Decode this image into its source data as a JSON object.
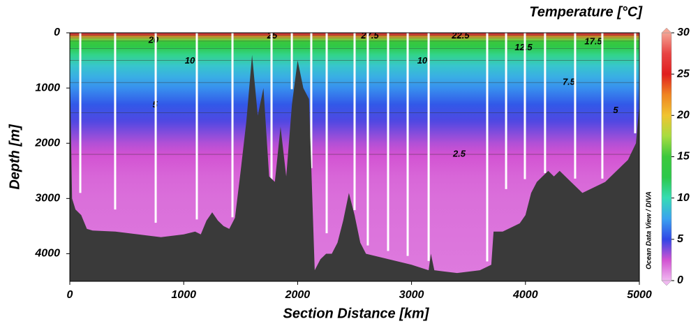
{
  "chart_data": {
    "type": "section",
    "title": "Temperature [°C]",
    "xlabel": "Section Distance [km]",
    "ylabel": "Depth [m]",
    "credit": "Ocean Data View / DIVA",
    "xlim": [
      0,
      5000
    ],
    "xticks": [
      0,
      1000,
      2000,
      3000,
      4000,
      5000
    ],
    "ylim": [
      0,
      4500
    ],
    "yticks": [
      0,
      1000,
      2000,
      3000,
      4000
    ],
    "y_inverted": true,
    "colorbar": {
      "lim": [
        0,
        30
      ],
      "ticks": [
        0,
        5,
        10,
        15,
        20,
        25,
        30
      ]
    },
    "colormap": [
      {
        "value": 0,
        "color": "#f0b8f0"
      },
      {
        "value": 2.5,
        "color": "#d252d2"
      },
      {
        "value": 5,
        "color": "#3046e6"
      },
      {
        "value": 7.5,
        "color": "#3aa2f0"
      },
      {
        "value": 10,
        "color": "#36dcb4"
      },
      {
        "value": 12.5,
        "color": "#2cc84a"
      },
      {
        "value": 15,
        "color": "#3cc83c"
      },
      {
        "value": 17.5,
        "color": "#a8dc40"
      },
      {
        "value": 20,
        "color": "#f0c430"
      },
      {
        "value": 22.5,
        "color": "#f08420"
      },
      {
        "value": 25,
        "color": "#e01e1e"
      },
      {
        "value": 27.5,
        "color": "#e84444"
      },
      {
        "value": 30,
        "color": "#f4a494"
      }
    ],
    "profile": {
      "depth": [
        0,
        30,
        60,
        100,
        150,
        250,
        400,
        600,
        800,
        1000,
        1300,
        1600,
        2000,
        2200,
        2600,
        3000,
        4500
      ],
      "temperature": [
        28,
        26,
        22,
        18,
        15,
        13,
        11,
        9,
        8,
        7,
        5.5,
        4.5,
        3,
        2.5,
        2,
        1.8,
        1.5
      ]
    },
    "contour_levels": [
      2.5,
      5,
      7.5,
      10,
      12.5,
      15,
      17.5,
      20,
      22.5,
      25,
      27.5
    ],
    "contour_labels": [
      {
        "x": 735,
        "y": 140,
        "value": 20
      },
      {
        "x": 1777,
        "y": 60,
        "value": 25
      },
      {
        "x": 2635,
        "y": 60,
        "value": 27.5
      },
      {
        "x": 3431,
        "y": 60,
        "value": 22.5
      },
      {
        "x": 3983,
        "y": 270,
        "value": 12.5
      },
      {
        "x": 4596,
        "y": 165,
        "value": 17.5
      },
      {
        "x": 1054,
        "y": 510,
        "value": 10
      },
      {
        "x": 3094,
        "y": 510,
        "value": 10
      },
      {
        "x": 4381,
        "y": 900,
        "value": 7.5
      },
      {
        "x": 4792,
        "y": 1410,
        "value": 5
      },
      {
        "x": 748,
        "y": 1310,
        "value": 5
      },
      {
        "x": 3419,
        "y": 2200,
        "value": 2.5
      }
    ],
    "bathymetry": {
      "x": [
        0,
        20,
        50,
        100,
        150,
        200,
        400,
        600,
        800,
        1000,
        1100,
        1150,
        1200,
        1250,
        1300,
        1350,
        1400,
        1450,
        1500,
        1550,
        1600,
        1650,
        1700,
        1750,
        1800,
        1850,
        1900,
        1950,
        2000,
        2050,
        2100,
        2150,
        2200,
        2250,
        2300,
        2350,
        2400,
        2450,
        2500,
        2550,
        2600,
        2800,
        3000,
        3150,
        3170,
        3200,
        3400,
        3600,
        3700,
        3720,
        3800,
        3900,
        3950,
        4000,
        4050,
        4100,
        4200,
        4250,
        4300,
        4400,
        4500,
        4600,
        4700,
        4800,
        4900,
        4970,
        5000
      ],
      "depth": [
        550,
        3000,
        3200,
        3300,
        3550,
        3580,
        3600,
        3650,
        3700,
        3650,
        3600,
        3650,
        3400,
        3250,
        3400,
        3500,
        3550,
        3350,
        2500,
        1600,
        400,
        1500,
        1000,
        2600,
        2700,
        1700,
        2600,
        1300,
        500,
        1000,
        1200,
        4300,
        4100,
        4000,
        4000,
        3800,
        3400,
        2900,
        3300,
        3800,
        4000,
        4100,
        4200,
        4300,
        4000,
        4300,
        4350,
        4300,
        4200,
        3600,
        3600,
        3500,
        3450,
        3300,
        2900,
        2700,
        2500,
        2600,
        2500,
        2700,
        2900,
        2800,
        2700,
        2500,
        2300,
        2000,
        1300
      ]
    },
    "stations": {
      "x": [
        92,
        398,
        754,
        1115,
        1428,
        1771,
        1949,
        2120,
        2255,
        2500,
        2616,
        2794,
        2966,
        3150,
        3664,
        3830,
        3995,
        4172,
        4436,
        4675,
        4963
      ],
      "depth": [
        2900,
        3200,
        3440,
        3380,
        3340,
        2680,
        1020,
        2450,
        3630,
        3210,
        3850,
        3950,
        4040,
        4130,
        4140,
        2830,
        2650,
        2540,
        2640,
        2640,
        1820
      ]
    }
  }
}
